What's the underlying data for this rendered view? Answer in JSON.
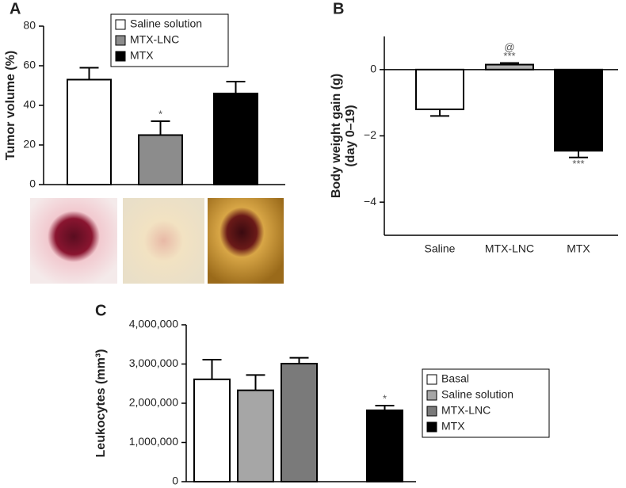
{
  "chart_data": [
    {
      "type": "bar",
      "label": "A",
      "ylabel": [
        "Tumor volume (%)"
      ],
      "categories": [
        "Saline solution",
        "MTX-LNC",
        "MTX"
      ],
      "colors": [
        "#ffffff",
        "#8c8c8c",
        "#000000"
      ],
      "values": [
        53,
        25,
        46
      ],
      "errors": [
        6,
        7,
        6
      ],
      "annotations": [
        null,
        [
          "*"
        ],
        null
      ],
      "ylim": [
        0,
        80
      ],
      "yticks": [
        0,
        20,
        40,
        60,
        80
      ],
      "legend": "top-right",
      "xlabels": false
    },
    {
      "type": "bar",
      "label": "B",
      "ylabel": [
        "Body weight gain (g)",
        "(day 0–19)"
      ],
      "categories": [
        "Saline",
        "MTX-LNC",
        "MTX"
      ],
      "colors": [
        "#ffffff",
        "#b0b0b0",
        "#000000"
      ],
      "values": [
        -1.2,
        0.15,
        -2.45
      ],
      "errors": [
        0.2,
        0.05,
        0.2
      ],
      "annotations": [
        null,
        [
          "@",
          "***"
        ],
        [
          "***"
        ]
      ],
      "ylim": [
        -5,
        1
      ],
      "yticks": [
        {
          "value": -4,
          "label": "−4"
        },
        {
          "value": -2,
          "label": "−2"
        },
        0
      ],
      "legend": null,
      "xlabels": true
    },
    {
      "type": "bar",
      "label": "C",
      "ylabel": [
        "Leukocytes (mm³)"
      ],
      "categories": [
        "Basal",
        "Saline solution",
        "MTX-LNC",
        "MTX"
      ],
      "colors": [
        "#ffffff",
        "#a6a6a6",
        "#7a7a7a",
        "#000000"
      ],
      "values": [
        2610000,
        2330000,
        3010000,
        1820000
      ],
      "errors": [
        500000,
        390000,
        150000,
        120000
      ],
      "annotations": [
        null,
        null,
        null,
        [
          "*"
        ]
      ],
      "ylim": [
        0,
        4000000
      ],
      "yticks": [
        0,
        {
          "value": 1000000,
          "label": "1,000,000"
        },
        {
          "value": 2000000,
          "label": "2,000,000"
        },
        {
          "value": 3000000,
          "label": "3,000,000"
        },
        {
          "value": 4000000,
          "label": "4,000,000"
        }
      ],
      "legend": "right",
      "xlabels": false
    }
  ]
}
